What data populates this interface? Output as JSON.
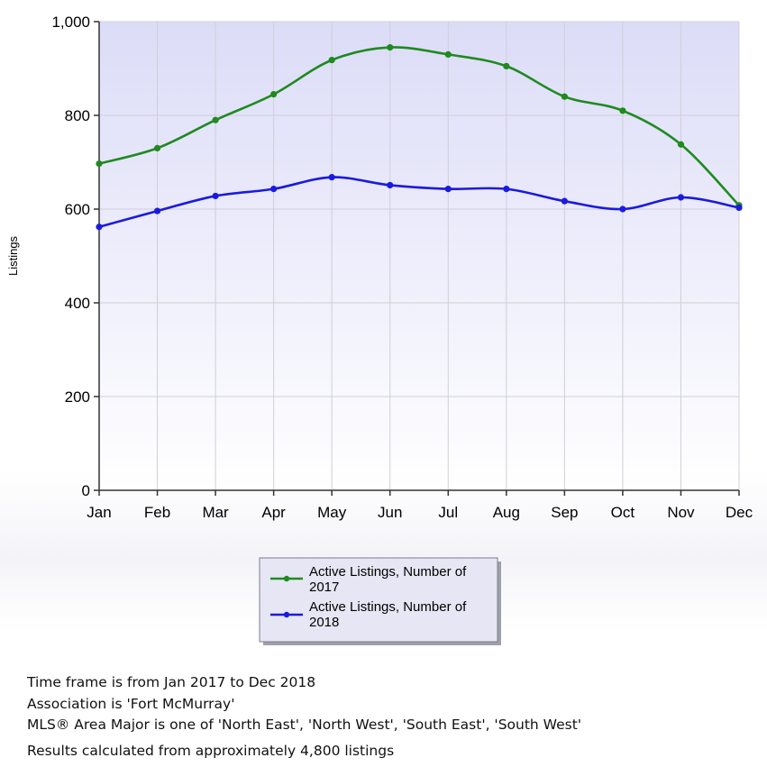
{
  "chart_data": {
    "type": "line",
    "categories": [
      "Jan",
      "Feb",
      "Mar",
      "Apr",
      "May",
      "Jun",
      "Jul",
      "Aug",
      "Sep",
      "Oct",
      "Nov",
      "Dec"
    ],
    "ylabel": "Listings",
    "ylim": [
      0,
      1000
    ],
    "yticks": [
      0,
      200,
      400,
      600,
      800,
      1000
    ],
    "ytick_labels": [
      "0",
      "200",
      "400",
      "600",
      "800",
      "1,000"
    ],
    "grid": true,
    "legend_position": "bottom-center",
    "series": [
      {
        "name_line1": "Active Listings, Number of",
        "name_line2": "2017",
        "color": "#1f8a1f",
        "values": [
          697,
          730,
          790,
          845,
          918,
          945,
          930,
          905,
          840,
          810,
          738,
          608
        ]
      },
      {
        "name_line1": "Active Listings, Number of",
        "name_line2": "2018",
        "color": "#1a1ae0",
        "values": [
          562,
          596,
          628,
          643,
          668,
          651,
          643,
          643,
          617,
          600,
          625,
          603
        ]
      }
    ]
  },
  "footer": {
    "line1": "Time frame is from Jan 2017 to Dec 2018",
    "line2": "Association is 'Fort McMurray'",
    "line3": "MLS® Area Major is one of 'North East', 'North West', 'South East', 'South West'",
    "line4": "Results calculated from approximately 4,800 listings"
  }
}
